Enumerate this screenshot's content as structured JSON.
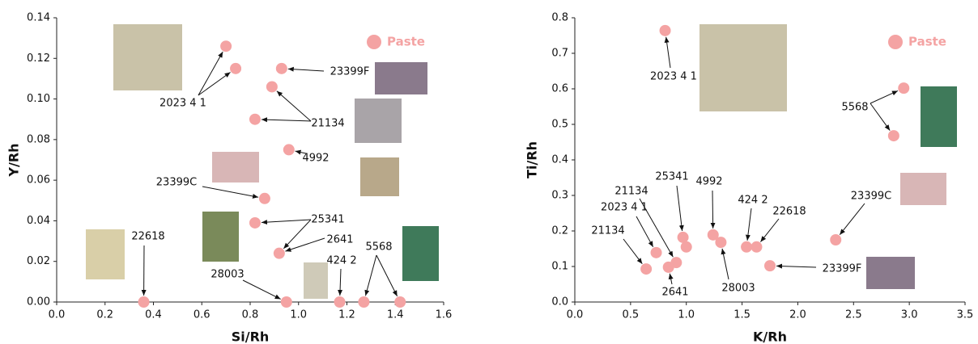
{
  "chart_data": [
    {
      "type": "scatter",
      "x_label": "Si/Rh",
      "y_label": "Y/Rh",
      "legend": "upper right",
      "xlim": [
        0,
        1.6
      ],
      "ylim": [
        0,
        0.14
      ],
      "xticks": [
        {
          "value": 0,
          "label": "0.0"
        },
        0.2,
        0.4,
        0.6,
        0.8,
        {
          "value": 1,
          "label": "1.0"
        },
        1.2,
        1.4,
        1.6
      ],
      "yticks": [
        {
          "value": 0,
          "label": "0.00"
        },
        0.02,
        0.04,
        0.06,
        0.08,
        {
          "value": 0.1,
          "label": "0.10"
        },
        0.12,
        0.14
      ],
      "series": [
        {
          "name": "Paste",
          "color": "#f4a3a3",
          "x": [
            0.7,
            0.74,
            0.93,
            0.89,
            0.82,
            0.96,
            0.86,
            0.82,
            0.92,
            0.36,
            0.95,
            1.17,
            1.27,
            1.42
          ],
          "values": [
            0.126,
            0.115,
            0.115,
            0.106,
            0.09,
            0.075,
            0.051,
            0.039,
            0.024,
            0,
            0,
            0,
            0,
            0
          ]
        }
      ],
      "annotations": [
        "2023 4 1",
        "23399F",
        "21134",
        "4992",
        "23399C",
        "25341",
        "2641",
        "22618",
        "28003",
        "424 2",
        "5568"
      ]
    },
    {
      "type": "scatter",
      "x_label": "K/Rh",
      "y_label": "Ti/Rh",
      "legend": "upper right",
      "xlim": [
        0,
        3.5
      ],
      "ylim": [
        0,
        0.8
      ],
      "xticks": [
        {
          "value": 0,
          "label": "0.0"
        },
        0.5,
        {
          "value": 1,
          "label": "1.0"
        },
        1.5,
        {
          "value": 2,
          "label": "2.0"
        },
        2.5,
        {
          "value": 3,
          "label": "3.0"
        },
        3.5
      ],
      "yticks": [
        {
          "value": 0,
          "label": "0.0"
        },
        0.1,
        0.2,
        0.3,
        0.4,
        0.5,
        0.6,
        0.7,
        0.8
      ],
      "series": [
        {
          "name": "Paste",
          "color": "#f4a3a3",
          "x": [
            0.81,
            2.95,
            2.86,
            2.34,
            0.97,
            1.24,
            1.31,
            1.0,
            0.73,
            0.91,
            0.84,
            0.64,
            1.54,
            1.63,
            1.75
          ],
          "values": [
            0.764,
            0.602,
            0.468,
            0.175,
            0.182,
            0.189,
            0.168,
            0.155,
            0.139,
            0.111,
            0.098,
            0.093,
            0.155,
            0.155,
            0.102
          ]
        }
      ],
      "annotations": [
        "2023 4 1",
        "5568",
        "23399C",
        "4992",
        "424 2",
        "22618",
        "25341",
        "21134",
        "2023 4 1",
        "21134",
        "2641",
        "28003",
        "23399F"
      ]
    }
  ]
}
